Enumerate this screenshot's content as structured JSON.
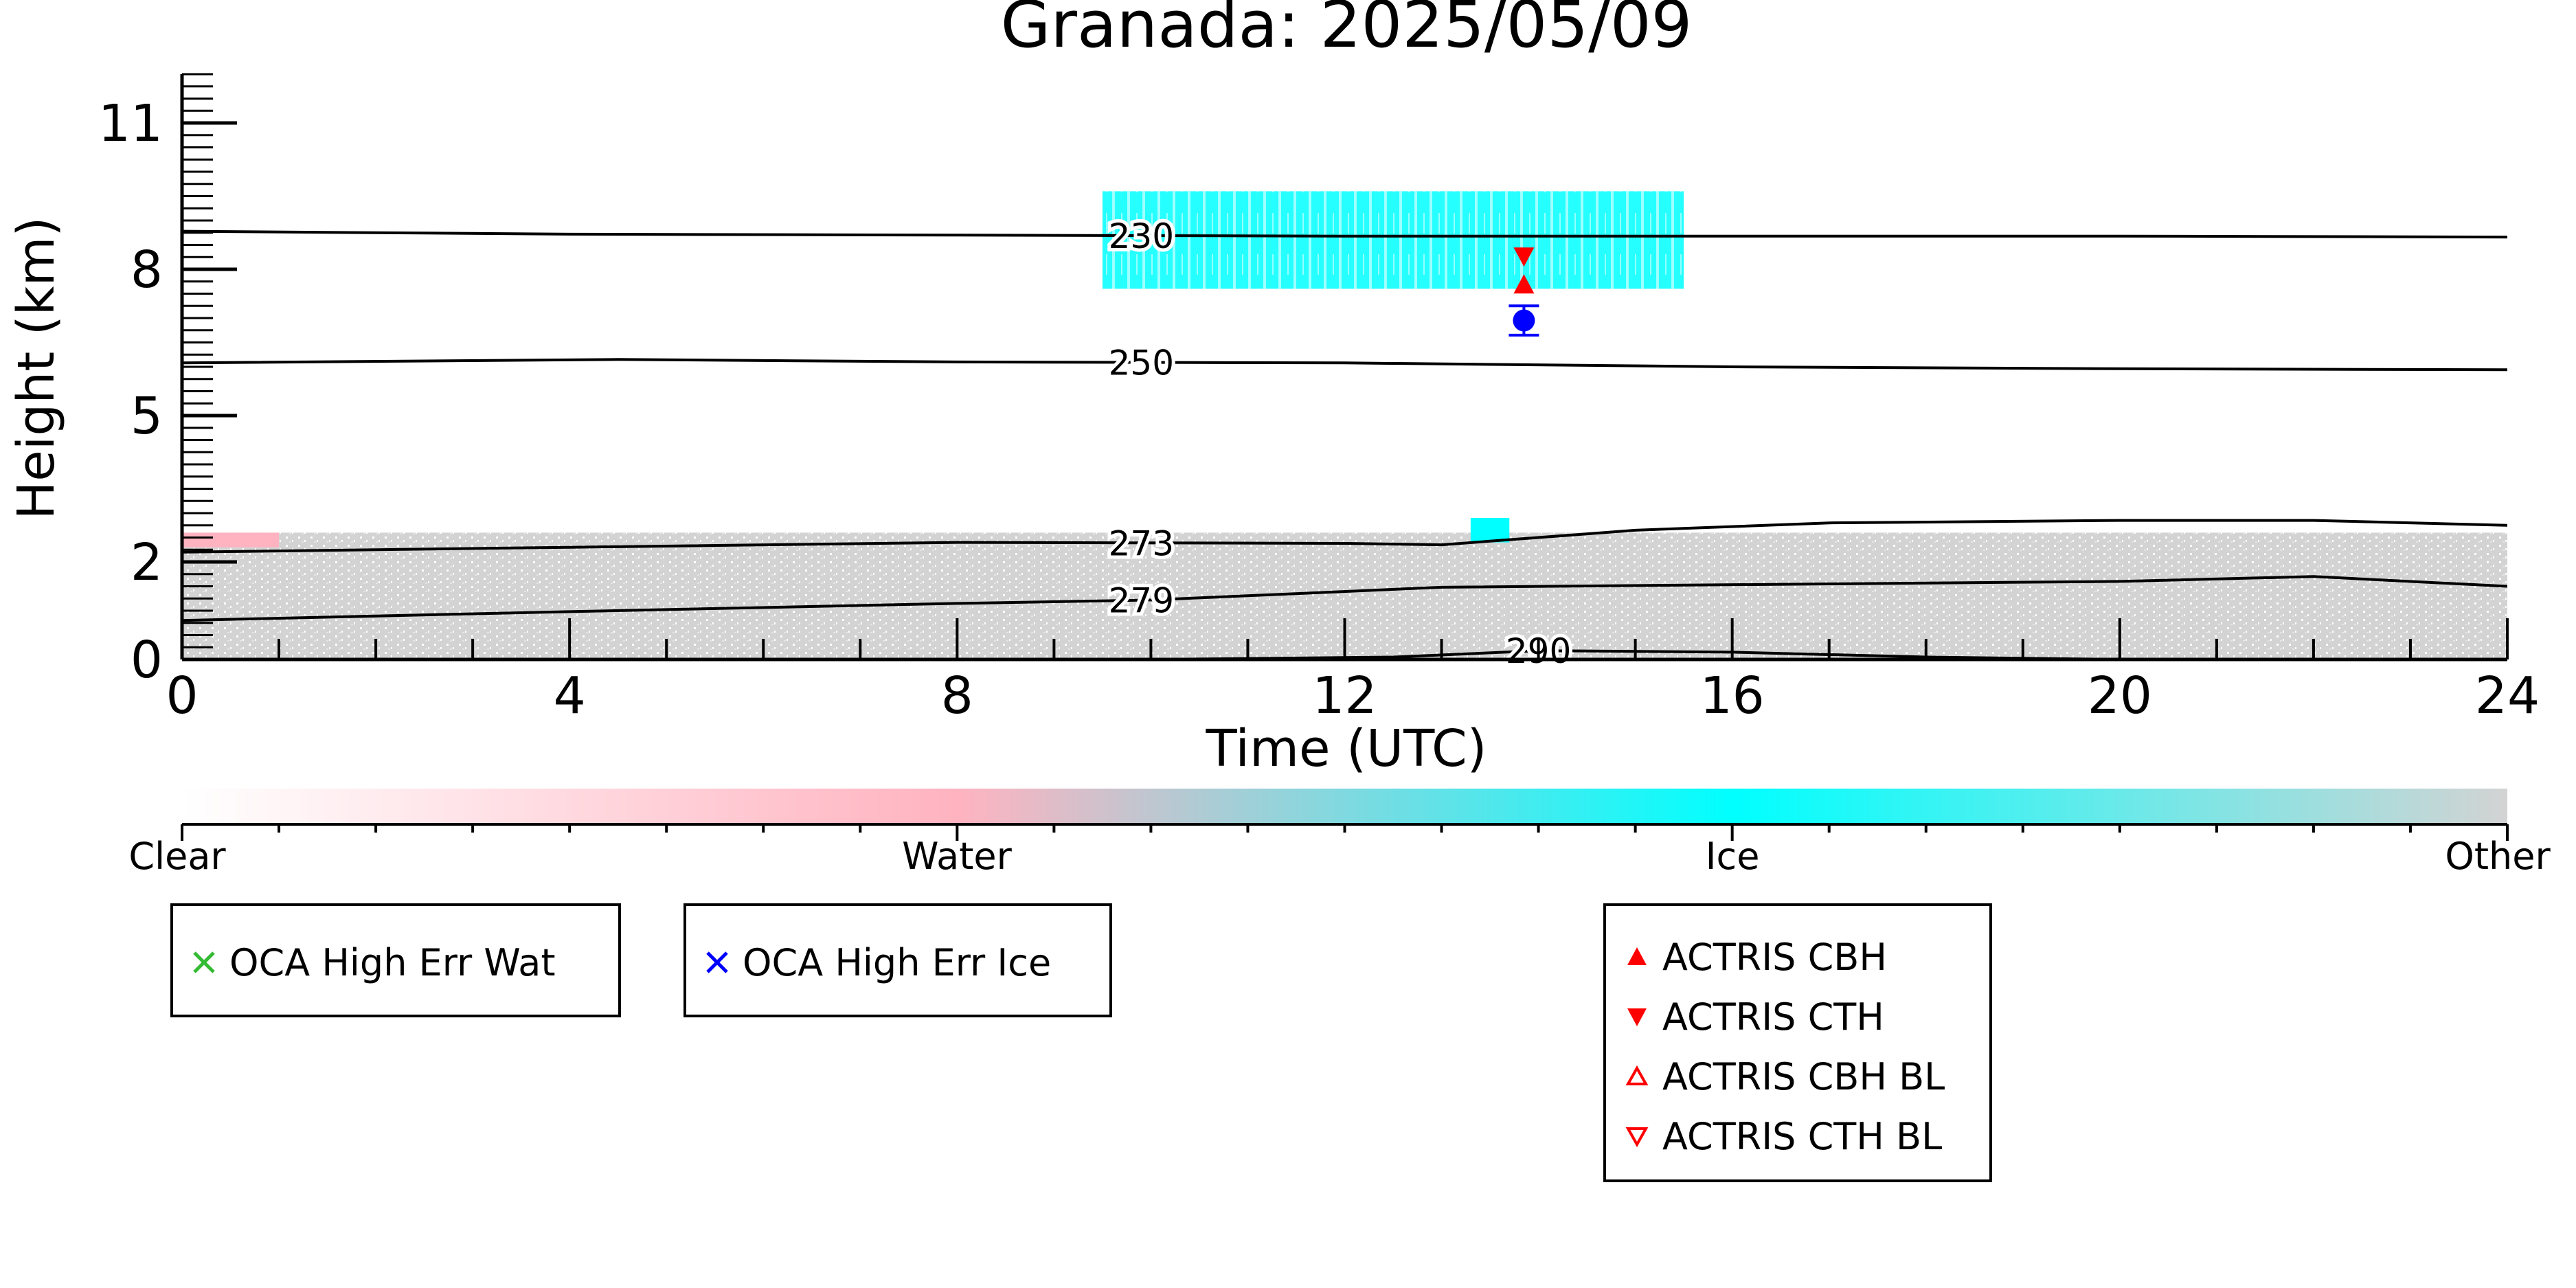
{
  "chart_data": {
    "type": "heatmap",
    "title": "Granada: 2025/05/09",
    "xlabel": "Time (UTC)",
    "ylabel": "Height (km)",
    "xlim": [
      0,
      24
    ],
    "ylim": [
      0,
      12
    ],
    "x_ticks": [
      0,
      4,
      8,
      12,
      16,
      20,
      24
    ],
    "y_ticks": [
      0,
      2,
      5,
      8,
      11
    ],
    "colorbar": {
      "categories": [
        "Clear",
        "Water",
        "Ice",
        "Other"
      ],
      "colors": [
        "#ffffff",
        "#ffb3c0",
        "#00ffff",
        "#d3d3d3"
      ]
    },
    "classification_regions": [
      {
        "class": "Ice",
        "color": "#00ffff",
        "time_start": 9.5,
        "time_end": 15.5,
        "height_bottom": 7.6,
        "height_top": 9.6
      },
      {
        "class": "Ice",
        "color": "#00ffff",
        "time_start": 13.3,
        "time_end": 13.7,
        "height_bottom": 2.4,
        "height_top": 2.9
      },
      {
        "class": "Water",
        "color": "#ffb3c0",
        "time_start": 0.0,
        "time_end": 1.0,
        "height_bottom": 2.3,
        "height_top": 2.6
      },
      {
        "class": "Other",
        "color": "#d3d3d3",
        "time_start": 0,
        "time_end": 24,
        "height_bottom": 0,
        "height_top": 2.6
      }
    ],
    "isotherms": [
      {
        "label": "230",
        "label_time": 9.9,
        "points": [
          [
            0,
            8.78
          ],
          [
            4,
            8.72
          ],
          [
            8,
            8.7
          ],
          [
            12,
            8.68
          ],
          [
            16,
            8.68
          ],
          [
            20,
            8.68
          ],
          [
            24,
            8.66
          ]
        ]
      },
      {
        "label": "250",
        "label_time": 9.9,
        "points": [
          [
            0,
            6.08
          ],
          [
            4.5,
            6.15
          ],
          [
            8,
            6.1
          ],
          [
            12,
            6.08
          ],
          [
            16,
            6.0
          ],
          [
            20,
            5.96
          ],
          [
            24,
            5.94
          ]
        ]
      },
      {
        "label": "273",
        "label_time": 9.9,
        "points": [
          [
            0,
            2.2
          ],
          [
            4,
            2.3
          ],
          [
            8,
            2.4
          ],
          [
            12,
            2.38
          ],
          [
            13,
            2.35
          ],
          [
            15,
            2.65
          ],
          [
            17,
            2.8
          ],
          [
            20,
            2.85
          ],
          [
            22,
            2.85
          ],
          [
            24,
            2.75
          ]
        ]
      },
      {
        "label": "279",
        "label_time": 9.9,
        "points": [
          [
            0,
            0.8
          ],
          [
            4,
            0.98
          ],
          [
            8,
            1.15
          ],
          [
            10,
            1.22
          ],
          [
            13,
            1.48
          ],
          [
            17,
            1.55
          ],
          [
            20,
            1.6
          ],
          [
            22,
            1.7
          ],
          [
            24,
            1.5
          ]
        ]
      },
      {
        "label": "290",
        "label_time": 14.0,
        "points": [
          [
            10,
            0.0
          ],
          [
            12.5,
            0.05
          ],
          [
            14,
            0.18
          ],
          [
            16,
            0.15
          ],
          [
            18,
            0.05
          ],
          [
            20,
            0.0
          ]
        ]
      }
    ],
    "markers": [
      {
        "series": "ACTRIS CTH",
        "time": 13.85,
        "height": 8.25
      },
      {
        "series": "ACTRIS CBH",
        "time": 13.85,
        "height": 7.7
      },
      {
        "series": "OCA",
        "time": 13.85,
        "height": 6.95,
        "err_low": 6.65,
        "err_high": 7.25
      }
    ],
    "legends": [
      {
        "label": "OCA High Err Wat",
        "marker": "x",
        "color": "#33bb33"
      },
      {
        "label": "OCA High Err Ice",
        "marker": "x",
        "color": "#0000ff"
      },
      {
        "label": "ACTRIS CBH",
        "marker": "triangle-up-filled",
        "color": "#ff0000"
      },
      {
        "label": "ACTRIS CTH",
        "marker": "triangle-down-filled",
        "color": "#ff0000"
      },
      {
        "label": "ACTRIS CBH BL",
        "marker": "triangle-up-open",
        "color": "#ff0000"
      },
      {
        "label": "ACTRIS CTH BL",
        "marker": "triangle-down-open",
        "color": "#ff0000"
      }
    ]
  }
}
